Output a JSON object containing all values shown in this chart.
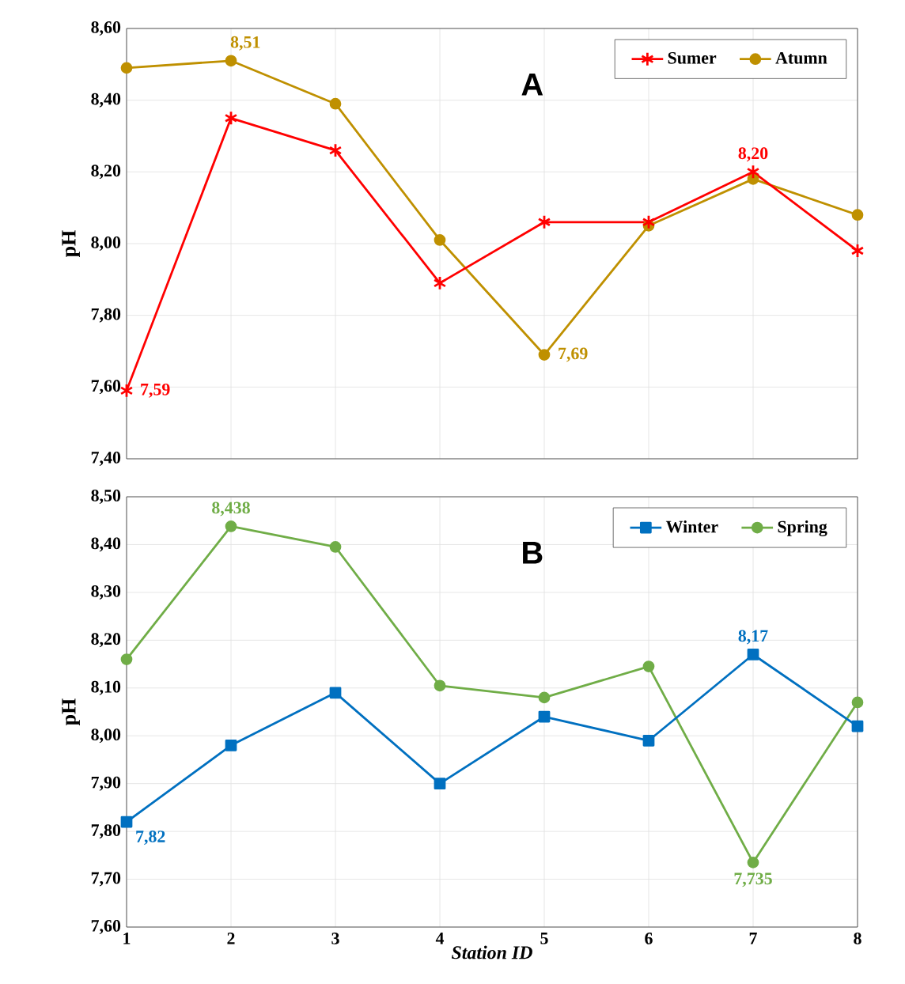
{
  "chart_data": [
    {
      "type": "line",
      "title": "A",
      "ylabel": "pH",
      "x": [
        1,
        2,
        3,
        4,
        5,
        6,
        7,
        8
      ],
      "xlim": [
        1,
        8
      ],
      "xticks": [
        1,
        2,
        3,
        4,
        5,
        6,
        7,
        8
      ],
      "ylim": [
        7.4,
        8.6
      ],
      "yticks": [
        {
          "value": 7.4,
          "label": "7,40"
        },
        {
          "value": 7.6,
          "label": "7,60"
        },
        {
          "value": 7.8,
          "label": "7,80"
        },
        {
          "value": 8.0,
          "label": "8,00"
        },
        {
          "value": 8.2,
          "label": "8,20"
        },
        {
          "value": 8.4,
          "label": "8,40"
        },
        {
          "value": 8.6,
          "label": "8,60"
        }
      ],
      "tick_labels": "y",
      "grid": true,
      "legend": "top right",
      "line_style": "solid",
      "series": [
        {
          "name": "Sumer",
          "color": "#ff0000",
          "marker": "cross",
          "values": [
            7.59,
            8.35,
            8.26,
            7.89,
            8.06,
            8.06,
            8.2,
            7.98
          ]
        },
        {
          "name": "Atumn",
          "color": "#bf9000",
          "marker": "circle",
          "values": [
            8.49,
            8.51,
            8.39,
            8.01,
            7.69,
            8.05,
            8.18,
            8.08
          ]
        }
      ],
      "annotations": [
        {
          "text": "7,59",
          "x": 1,
          "y": 7.59
        },
        {
          "text": "8,51",
          "x": 2,
          "y": 8.51
        },
        {
          "text": "7,69",
          "x": 5,
          "y": 7.69
        },
        {
          "text": "8,20",
          "x": 7,
          "y": 8.2
        }
      ]
    },
    {
      "type": "line",
      "title": "B",
      "xlabel": "Station ID",
      "ylabel": "pH",
      "x": [
        1,
        2,
        3,
        4,
        5,
        6,
        7,
        8
      ],
      "xlim": [
        1,
        8
      ],
      "xticks": [
        1,
        2,
        3,
        4,
        5,
        6,
        7,
        8
      ],
      "ylim": [
        7.6,
        8.5
      ],
      "yticks": [
        {
          "value": 7.6,
          "label": "7,60"
        },
        {
          "value": 7.7,
          "label": "7,70"
        },
        {
          "value": 7.8,
          "label": "7,80"
        },
        {
          "value": 7.9,
          "label": "7,90"
        },
        {
          "value": 8.0,
          "label": "8,00"
        },
        {
          "value": 8.1,
          "label": "8,10"
        },
        {
          "value": 8.2,
          "label": "8,20"
        },
        {
          "value": 8.3,
          "label": "8,30"
        },
        {
          "value": 8.4,
          "label": "8,40"
        },
        {
          "value": 8.5,
          "label": "8,50"
        }
      ],
      "grid": true,
      "legend": "top right",
      "line_style": "solid",
      "series": [
        {
          "name": "Winter",
          "color": "#0070c0",
          "marker": "square",
          "values": [
            7.82,
            7.98,
            8.09,
            7.9,
            8.04,
            7.99,
            8.17,
            8.02
          ]
        },
        {
          "name": "Spring",
          "color": "#70ad47",
          "marker": "circle",
          "values": [
            8.16,
            8.438,
            8.395,
            8.105,
            8.08,
            8.145,
            7.735,
            8.07
          ]
        }
      ],
      "annotations": [
        {
          "text": "8,438",
          "x": 2,
          "y": 8.438
        },
        {
          "text": "7,82",
          "x": 1,
          "y": 7.82
        },
        {
          "text": "8,17",
          "x": 7,
          "y": 8.17
        },
        {
          "text": "7,735",
          "x": 7,
          "y": 7.735
        }
      ]
    }
  ]
}
